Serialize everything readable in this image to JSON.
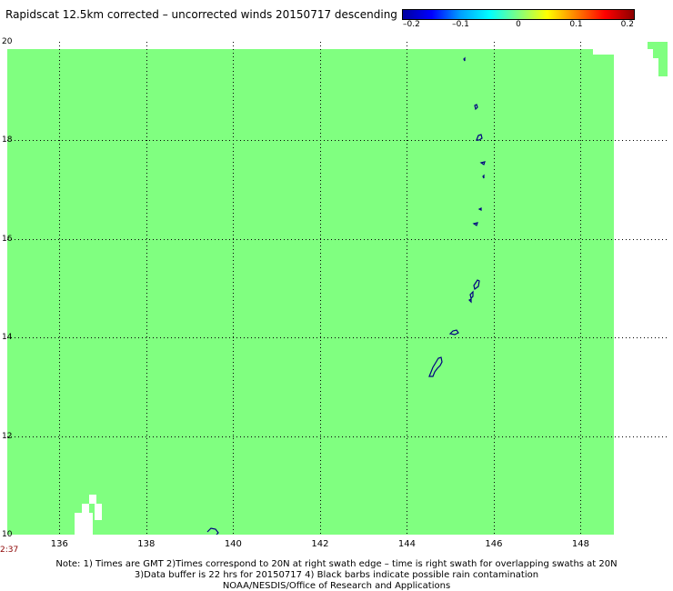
{
  "title": "Rapidscat 12.5km corrected – uncorrected winds 20150717 descending",
  "colorbar": {
    "colors": [
      "#0000a0",
      "#0000ff",
      "#00a0ff",
      "#00ffff",
      "#80ff80",
      "#ffff00",
      "#ff8000",
      "#ff0000",
      "#8b0000"
    ],
    "labels": [
      {
        "value": "–0.2",
        "frac": 0.0
      },
      {
        "value": "–0.1",
        "frac": 0.25
      },
      {
        "value": "0",
        "frac": 0.5
      },
      {
        "value": "0.1",
        "frac": 0.75
      },
      {
        "value": "0.2",
        "frac": 1.0
      }
    ]
  },
  "map": {
    "lon_range": [
      134.8,
      150
    ],
    "lat_range": [
      10,
      20
    ],
    "x_ticks": [
      {
        "value": 136,
        "label": "136"
      },
      {
        "value": 138,
        "label": "138"
      },
      {
        "value": 140,
        "label": "140"
      },
      {
        "value": 142,
        "label": "142"
      },
      {
        "value": 144,
        "label": "144"
      },
      {
        "value": 146,
        "label": "146"
      },
      {
        "value": 148,
        "label": "148"
      }
    ],
    "y_ticks": [
      {
        "value": 20,
        "label": "20"
      },
      {
        "value": 18,
        "label": "18"
      },
      {
        "value": 16,
        "label": "16"
      },
      {
        "value": 14,
        "label": "14"
      },
      {
        "value": 12,
        "label": "12"
      },
      {
        "value": 10,
        "label": "10"
      }
    ],
    "data_color": "#80ff80",
    "coast_color": "#000080"
  },
  "time_label": "2:37",
  "notes": [
    "Note: 1) Times are GMT 2)Times correspond to 20N at right swath edge – time is right swath for overlapping swaths at 20N",
    "3)Data buffer is 22 hrs for 20150717 4) Black barbs indicate possible rain contamination",
    "NOAA/NESDIS/Office of Research and Applications"
  ]
}
